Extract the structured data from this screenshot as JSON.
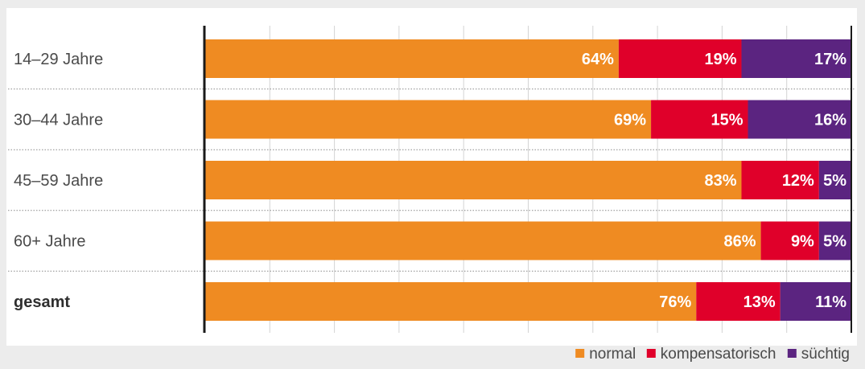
{
  "chart_data": {
    "type": "bar",
    "orientation": "horizontal",
    "stacked": true,
    "categories": [
      "14–29 Jahre",
      "30–44 Jahre",
      "45–59 Jahre",
      "60+ Jahre",
      "gesamt"
    ],
    "emphasized_category": "gesamt",
    "xlim": [
      0,
      100
    ],
    "grid": true,
    "legend_position": "bottom-right",
    "series": [
      {
        "name": "normal",
        "color": "#ef8b22",
        "values": [
          64,
          69,
          83,
          86,
          76
        ],
        "labels": [
          "64%",
          "69%",
          "83%",
          "86%",
          "76%"
        ]
      },
      {
        "name": "kompensatorisch",
        "color": "#e0002a",
        "values": [
          19,
          15,
          12,
          9,
          13
        ],
        "labels": [
          "19%",
          "15%",
          "12%",
          "9%",
          "13%"
        ]
      },
      {
        "name": "süchtig",
        "color": "#5b2480",
        "values": [
          17,
          16,
          5,
          5,
          11
        ],
        "labels": [
          "17%",
          "16%",
          "5%",
          "5%",
          "11%"
        ]
      }
    ]
  }
}
